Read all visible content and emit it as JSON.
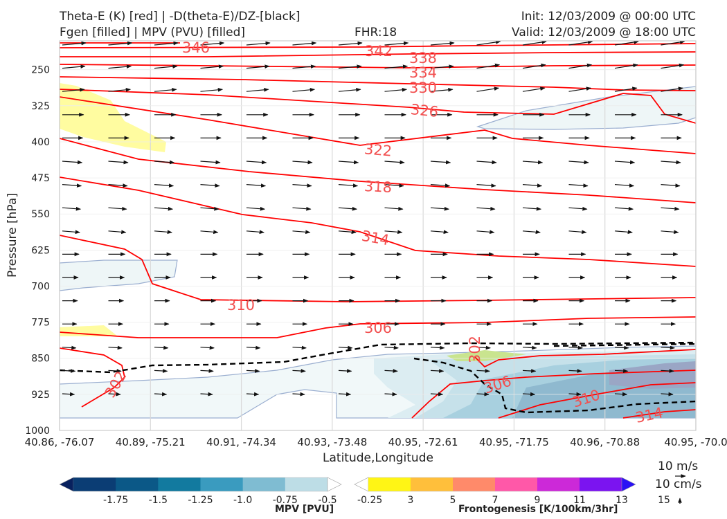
{
  "header": {
    "title_line1": "Theta-E (K) [red] | -D(theta-E)/DZ-[black]",
    "title_line2": "Fgen [filled] | MPV (PVU) [filled]",
    "fhr": "FHR:18",
    "init": "Init: 12/03/2009 @ 00:00 UTC",
    "valid": "Valid: 12/03/2009 @ 18:00 UTC"
  },
  "chart_data": {
    "type": "cross-section",
    "xlabel": "Latitude,Longitude",
    "ylabel": "Pressure [hPa]",
    "x_ticks": [
      "40.86, -76.07",
      "40.89, -75.21",
      "40.91, -74.34",
      "40.93, -73.48",
      "40.95, -72.61",
      "40.95, -71.75",
      "40.96, -70.88",
      "40.95, -70.0"
    ],
    "y_ticks": [
      250,
      325,
      400,
      475,
      550,
      625,
      700,
      775,
      850,
      925,
      1000
    ],
    "ylim": [
      1000,
      190
    ],
    "y_axis_inverted": true,
    "theta_e_contours": {
      "color": "#ff0000",
      "labels": [
        "346",
        "342",
        "338",
        "334",
        "330",
        "326",
        "322",
        "318",
        "314",
        "310",
        "306",
        "302",
        "306",
        "310",
        "314",
        "302"
      ]
    },
    "stability_contours": {
      "color": "#000000",
      "style": "dashed"
    },
    "mpv_colorbar": {
      "label": "MPV [PVU]",
      "ticks": [
        "-1.75",
        "-1.5",
        "-1.25",
        "-1.0",
        "-0.75",
        "-0.5",
        "-0.25"
      ],
      "colors": [
        "#08215e",
        "#0b3d74",
        "#0b5887",
        "#127a9f",
        "#3a9bbf",
        "#7fbcd2",
        "#bddde6",
        "#ffffff"
      ]
    },
    "fgen_colorbar": {
      "label": "Frontogenesis [K/100km/3hr]",
      "ticks": [
        "3",
        "5",
        "7",
        "9",
        "11",
        "13",
        "15"
      ],
      "colors": [
        "#ffffff",
        "#fff515",
        "#ffbf3b",
        "#ff8a6a",
        "#ff58a8",
        "#cc29d8",
        "#7b14f0",
        "#2a12f5"
      ]
    },
    "vector_key": {
      "horizontal": "10 m/s",
      "vertical": "10 cm/s"
    },
    "grid": true
  }
}
